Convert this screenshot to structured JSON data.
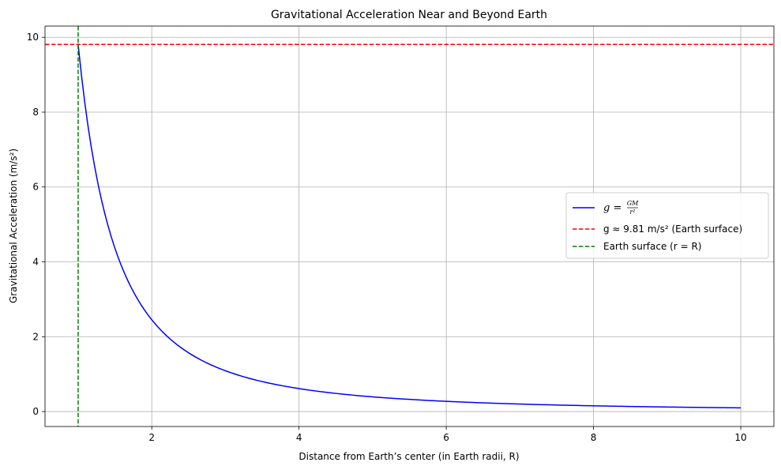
{
  "chart_data": {
    "type": "line",
    "title": "Gravitational Acceleration Near and Beyond Earth",
    "xlabel": "Distance from Earth’s center (in Earth radii, R)",
    "ylabel": "Gravitational Acceleration (m/s²)",
    "xlim": [
      0.55,
      10.45
    ],
    "ylim": [
      -0.4,
      10.3
    ],
    "xticks": [
      2,
      4,
      6,
      8,
      10
    ],
    "yticks": [
      0,
      2,
      4,
      6,
      8,
      10
    ],
    "grid": true,
    "legend_position": "center-right",
    "curve": {
      "name_prefix": "g =",
      "name_numerator": "GM",
      "name_denominator": "r²",
      "color": "#0000ff",
      "x_range": [
        1,
        10
      ],
      "surface_value": 9.81
    },
    "hline": {
      "name": "g ≈ 9.81 m/s² (Earth surface)",
      "y": 9.81,
      "color": "#ff0000",
      "style": "dashed"
    },
    "vline": {
      "name": "Earth surface (r = R)",
      "x": 1,
      "color": "#008000",
      "style": "dashed"
    }
  }
}
